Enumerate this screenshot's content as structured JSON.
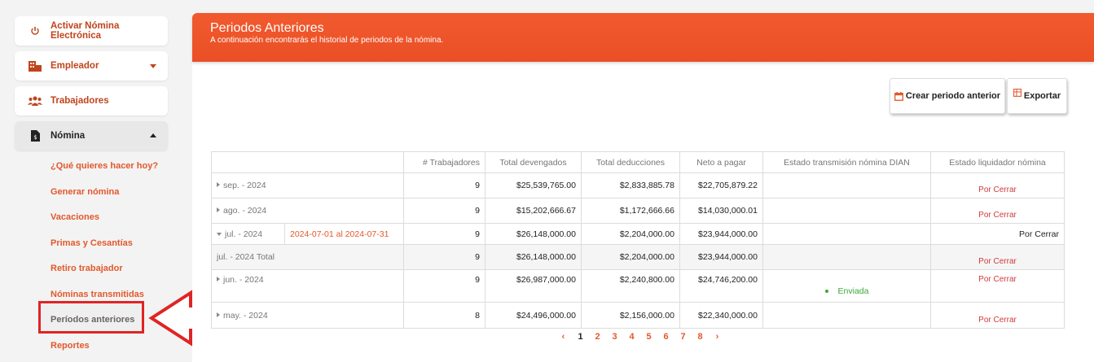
{
  "sidebar": {
    "activar": "Activar Nómina Electrónica",
    "empleador": "Empleador",
    "trabajadores": "Trabajadores",
    "nomina": "Nómina",
    "sub_items": [
      "¿Qué quieres hacer hoy?",
      "Generar nómina",
      "Vacaciones",
      "Primas y Cesantías",
      "Retiro trabajador",
      "Nóminas transmitidas",
      "Períodos anteriores",
      "Reportes"
    ]
  },
  "header": {
    "title": "Periodos Anteriores",
    "subtitle": "A continuación encontrarás el historial de periodos de la nómina."
  },
  "toolbar": {
    "crear_label": "Crear periodo anterior",
    "exportar_label": "Exportar"
  },
  "table": {
    "headers": [
      "# Trabajadores",
      "Total devengados",
      "Total deducciones",
      "Neto a pagar",
      "Estado transmisión nómina DIAN",
      "Estado liquidador nómina"
    ],
    "rows": [
      {
        "period": "sep. - 2024",
        "workers": "9",
        "devengados": "$25,539,765.00",
        "deducciones": "$2,833,885.78",
        "neto": "$22,705,879.22",
        "dian": "",
        "liquidador": "Por Cerrar"
      },
      {
        "period": "ago. - 2024",
        "workers": "9",
        "devengados": "$15,202,666.67",
        "deducciones": "$1,172,666.66",
        "neto": "$14,030,000.01",
        "dian": "",
        "liquidador": "Por Cerrar"
      },
      {
        "period": "jul. - 2024",
        "range": "2024-07-01 al 2024-07-31",
        "workers": "9",
        "devengados": "$26,148,000.00",
        "deducciones": "$2,204,000.00",
        "neto": "$23,944,000.00",
        "dian": "",
        "liquidador": "Por Cerrar"
      },
      {
        "period": "jul. - 2024 Total",
        "workers": "9",
        "devengados": "$26,148,000.00",
        "deducciones": "$2,204,000.00",
        "neto": "$23,944,000.00",
        "dian": "",
        "liquidador": "Por Cerrar"
      },
      {
        "period": "jun. - 2024",
        "workers": "9",
        "devengados": "$26,987,000.00",
        "deducciones": "$2,240,800.00",
        "neto": "$24,746,200.00",
        "dian": "Enviada",
        "liquidador": "Por Cerrar"
      },
      {
        "period": "may. - 2024",
        "workers": "8",
        "devengados": "$24,496,000.00",
        "deducciones": "$2,156,000.00",
        "neto": "$22,340,000.00",
        "dian": "",
        "liquidador": "Por Cerrar"
      }
    ]
  },
  "pagination": {
    "prev": "‹",
    "pages": [
      "1",
      "2",
      "3",
      "4",
      "5",
      "6",
      "7",
      "8"
    ],
    "next": "›",
    "current": "1"
  },
  "colors": {
    "accent": "#f15a2e",
    "highlight": "#e02424",
    "sent": "#3aa83a"
  }
}
